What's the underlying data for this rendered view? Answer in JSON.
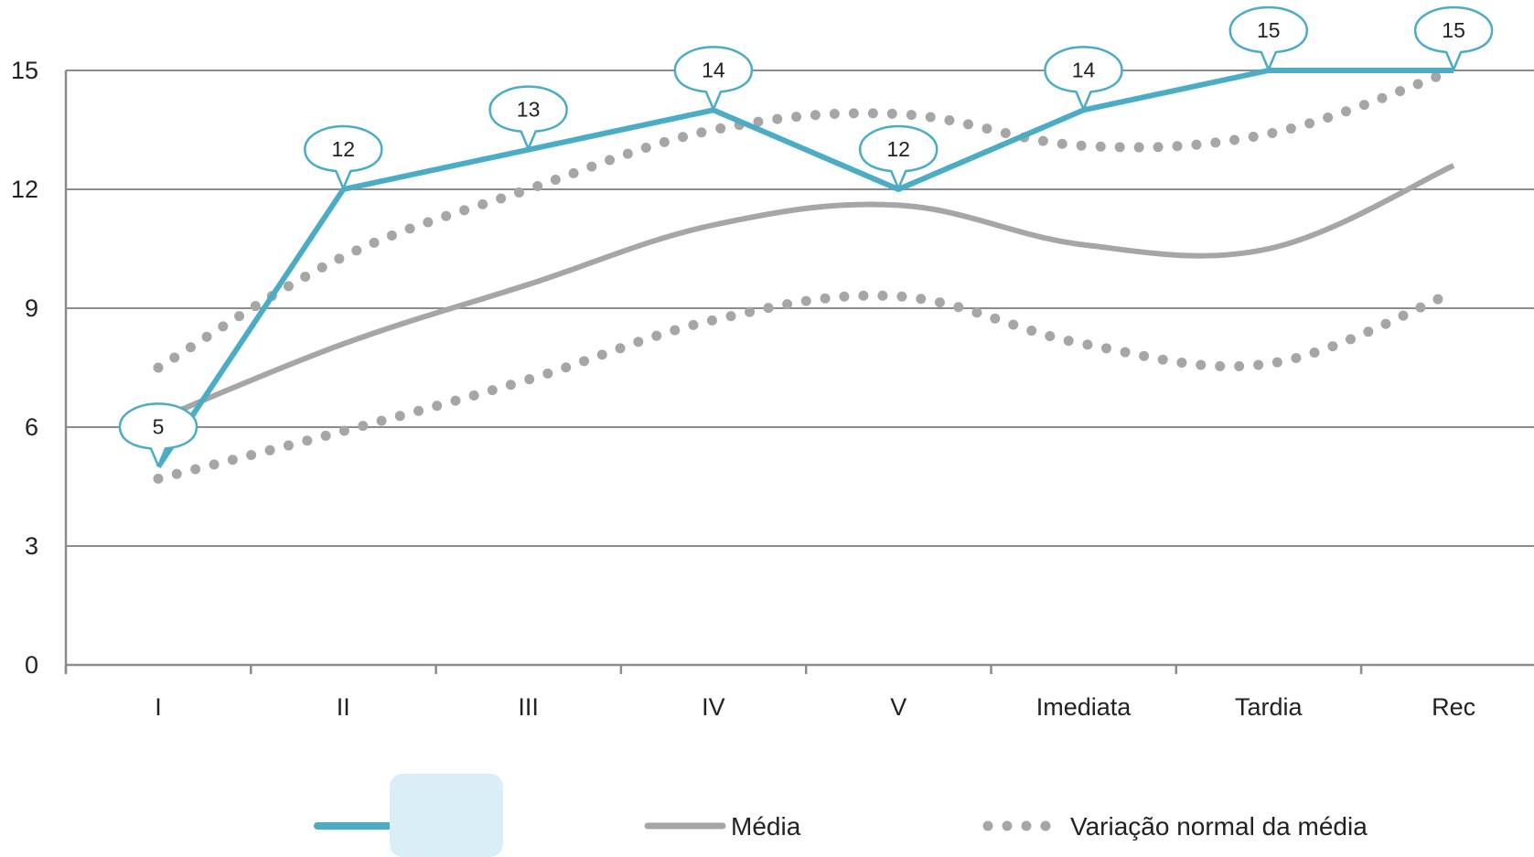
{
  "chart_data": {
    "type": "line",
    "categories": [
      "I",
      "II",
      "III",
      "IV",
      "V",
      "Imediata",
      "Tardia",
      "Rec"
    ],
    "ylim": [
      0,
      15
    ],
    "yticks": [
      "0",
      "3",
      "6",
      "9",
      "12",
      "15"
    ],
    "grid": true,
    "series": [
      {
        "name": "",
        "style": "solid-thick",
        "color": "#4BACC6",
        "values": [
          5,
          12,
          13,
          14,
          12,
          14,
          15,
          15
        ],
        "data_labels": [
          "5",
          "12",
          "13",
          "14",
          "12",
          "14",
          "15",
          "15"
        ]
      },
      {
        "name": "Média",
        "style": "solid",
        "color": "#A6A6A6",
        "values": [
          6.2,
          8.1,
          9.6,
          11.1,
          11.6,
          10.6,
          10.5,
          12.6
        ]
      },
      {
        "name": "Variação normal da média",
        "style": "dotted",
        "color": "#A6A6A6",
        "values": [
          7.5,
          10.3,
          12.0,
          13.5,
          13.9,
          13.1,
          13.4,
          15.0
        ]
      },
      {
        "name": "",
        "style": "dotted",
        "color": "#A6A6A6",
        "values": [
          4.7,
          5.9,
          7.2,
          8.7,
          9.3,
          8.1,
          7.6,
          9.4
        ]
      }
    ],
    "legend": {
      "placement": "bottom",
      "entries": [
        {
          "label": "",
          "style": "solid-thick",
          "color": "#4BACC6",
          "swatch_fill": "#DAEEF7"
        },
        {
          "label": "Média",
          "style": "solid",
          "color": "#A6A6A6"
        },
        {
          "label": "Variação normal da média",
          "style": "dotted",
          "color": "#A6A6A6"
        }
      ]
    }
  }
}
